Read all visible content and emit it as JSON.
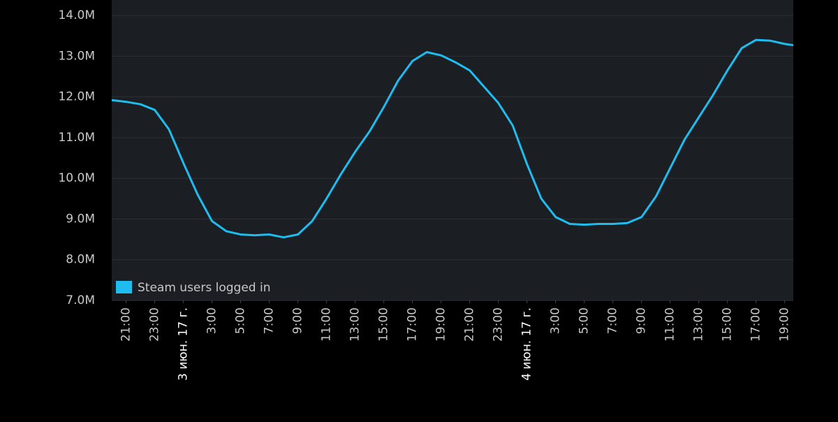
{
  "chart_data": {
    "type": "line",
    "xlim": [
      -1,
      46.6
    ],
    "ylim": [
      7000000,
      14380000
    ],
    "yticks": [
      {
        "value": 7000000,
        "label": "7.0M"
      },
      {
        "value": 8000000,
        "label": "8.0M"
      },
      {
        "value": 9000000,
        "label": "9.0M"
      },
      {
        "value": 10000000,
        "label": "10.0M"
      },
      {
        "value": 11000000,
        "label": "11.0M"
      },
      {
        "value": 12000000,
        "label": "12.0M"
      },
      {
        "value": 13000000,
        "label": "13.0M"
      },
      {
        "value": 14000000,
        "label": "14.0M"
      }
    ],
    "xticks": [
      {
        "value": 0,
        "label": "21:00"
      },
      {
        "value": 2,
        "label": "23:00"
      },
      {
        "value": 4,
        "label": "3 июн. 17 г."
      },
      {
        "value": 6,
        "label": "3:00"
      },
      {
        "value": 8,
        "label": "5:00"
      },
      {
        "value": 10,
        "label": "7:00"
      },
      {
        "value": 12,
        "label": "9:00"
      },
      {
        "value": 14,
        "label": "11:00"
      },
      {
        "value": 16,
        "label": "13:00"
      },
      {
        "value": 18,
        "label": "15:00"
      },
      {
        "value": 20,
        "label": "17:00"
      },
      {
        "value": 22,
        "label": "19:00"
      },
      {
        "value": 24,
        "label": "21:00"
      },
      {
        "value": 26,
        "label": "23:00"
      },
      {
        "value": 28,
        "label": "4 июн. 17 г."
      },
      {
        "value": 30,
        "label": "3:00"
      },
      {
        "value": 32,
        "label": "5:00"
      },
      {
        "value": 34,
        "label": "7:00"
      },
      {
        "value": 36,
        "label": "9:00"
      },
      {
        "value": 38,
        "label": "11:00"
      },
      {
        "value": 40,
        "label": "13:00"
      },
      {
        "value": 42,
        "label": "15:00"
      },
      {
        "value": 44,
        "label": "17:00"
      },
      {
        "value": 46,
        "label": "19:00"
      }
    ],
    "grid": true,
    "x": [
      -1,
      0,
      1,
      2,
      3,
      4,
      5,
      6,
      7,
      8,
      9,
      10,
      11,
      12,
      13,
      14,
      15,
      16,
      17,
      18,
      19,
      20,
      21,
      22,
      23,
      24,
      25,
      26,
      27,
      28,
      29,
      30,
      31,
      32,
      33,
      34,
      35,
      36,
      37,
      38,
      39,
      40,
      41,
      42,
      43,
      44,
      45,
      46,
      46.6
    ],
    "series": [
      {
        "name": "Steam users logged in",
        "color": "#1fbcef",
        "values": [
          11920000,
          11880000,
          11820000,
          11680000,
          11200000,
          10380000,
          9600000,
          8950000,
          8700000,
          8620000,
          8600000,
          8620000,
          8550000,
          8620000,
          8950000,
          9500000,
          10100000,
          10650000,
          11150000,
          11750000,
          12400000,
          12880000,
          13100000,
          13020000,
          12850000,
          12650000,
          12250000,
          11850000,
          11300000,
          10350000,
          9500000,
          9050000,
          8880000,
          8860000,
          8880000,
          8880000,
          8900000,
          9050000,
          9550000,
          10250000,
          10950000,
          11500000,
          12050000,
          12650000,
          13200000,
          13400000,
          13380000,
          13300000,
          13270000
        ]
      }
    ]
  }
}
